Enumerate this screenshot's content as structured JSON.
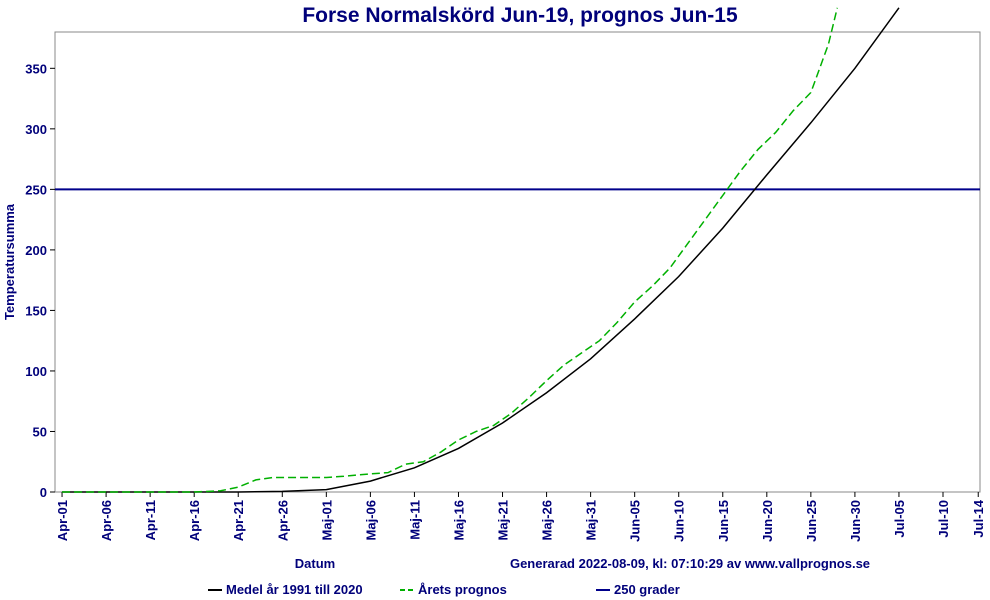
{
  "chart_data": {
    "type": "line",
    "title": "Forse Normalskörd Jun-19, prognos Jun-15",
    "x_label": "Datum",
    "y_label": "Temperatursumma",
    "note": "Generarad 2022-08-09, kl: 07:10:29 av www.vallprognos.se",
    "xlim": [
      -0.8,
      104.2
    ],
    "ylim": [
      0,
      380
    ],
    "yticks": [
      0,
      50,
      100,
      150,
      200,
      250,
      300,
      350
    ],
    "xticks": [
      {
        "value": 0,
        "label": "Apr-01"
      },
      {
        "value": 5,
        "label": "Apr-06"
      },
      {
        "value": 10,
        "label": "Apr-11"
      },
      {
        "value": 15,
        "label": "Apr-16"
      },
      {
        "value": 20,
        "label": "Apr-21"
      },
      {
        "value": 25,
        "label": "Apr-26"
      },
      {
        "value": 30,
        "label": "Maj-01"
      },
      {
        "value": 35,
        "label": "Maj-06"
      },
      {
        "value": 40,
        "label": "Maj-11"
      },
      {
        "value": 45,
        "label": "Maj-16"
      },
      {
        "value": 50,
        "label": "Maj-21"
      },
      {
        "value": 55,
        "label": "Maj-26"
      },
      {
        "value": 60,
        "label": "Maj-31"
      },
      {
        "value": 65,
        "label": "Jun-05"
      },
      {
        "value": 70,
        "label": "Jun-10"
      },
      {
        "value": 75,
        "label": "Jun-15"
      },
      {
        "value": 80,
        "label": "Jun-20"
      },
      {
        "value": 85,
        "label": "Jun-25"
      },
      {
        "value": 90,
        "label": "Jun-30"
      },
      {
        "value": 95,
        "label": "Jul-05"
      },
      {
        "value": 100,
        "label": "Jul-10"
      },
      {
        "value": 104,
        "label": "Jul-14"
      }
    ],
    "series": [
      {
        "name": "Medel år 1991 till 2020",
        "color": "#000000",
        "dash": false,
        "x": [
          0,
          5,
          10,
          15,
          20,
          25,
          30,
          35,
          40,
          45,
          50,
          55,
          60,
          65,
          70,
          75,
          80,
          85,
          90,
          95
        ],
        "values": [
          0,
          0,
          0,
          0,
          0,
          0.5,
          2,
          9,
          20,
          36,
          57,
          82,
          110,
          143,
          178,
          218,
          262,
          305,
          350,
          400
        ]
      },
      {
        "name": "Årets prognos",
        "color": "#00b000",
        "dash": true,
        "x": [
          0,
          15,
          18,
          20,
          22,
          24,
          30,
          32,
          35,
          37,
          39,
          41,
          43,
          45,
          47,
          49,
          51,
          53,
          55,
          57,
          59,
          61,
          63,
          65,
          67,
          69,
          71,
          73,
          75,
          77,
          79,
          81,
          83,
          85,
          87,
          88
        ],
        "values": [
          0,
          0,
          1,
          4,
          10,
          12,
          12,
          13,
          15,
          16,
          23,
          25,
          33,
          43,
          50,
          55,
          65,
          78,
          92,
          105,
          115,
          125,
          140,
          157,
          170,
          185,
          205,
          225,
          245,
          265,
          283,
          297,
          315,
          330,
          370,
          400
        ]
      }
    ],
    "reference_line": {
      "name": "250 grader",
      "color": "#00008b",
      "value": 250
    }
  }
}
